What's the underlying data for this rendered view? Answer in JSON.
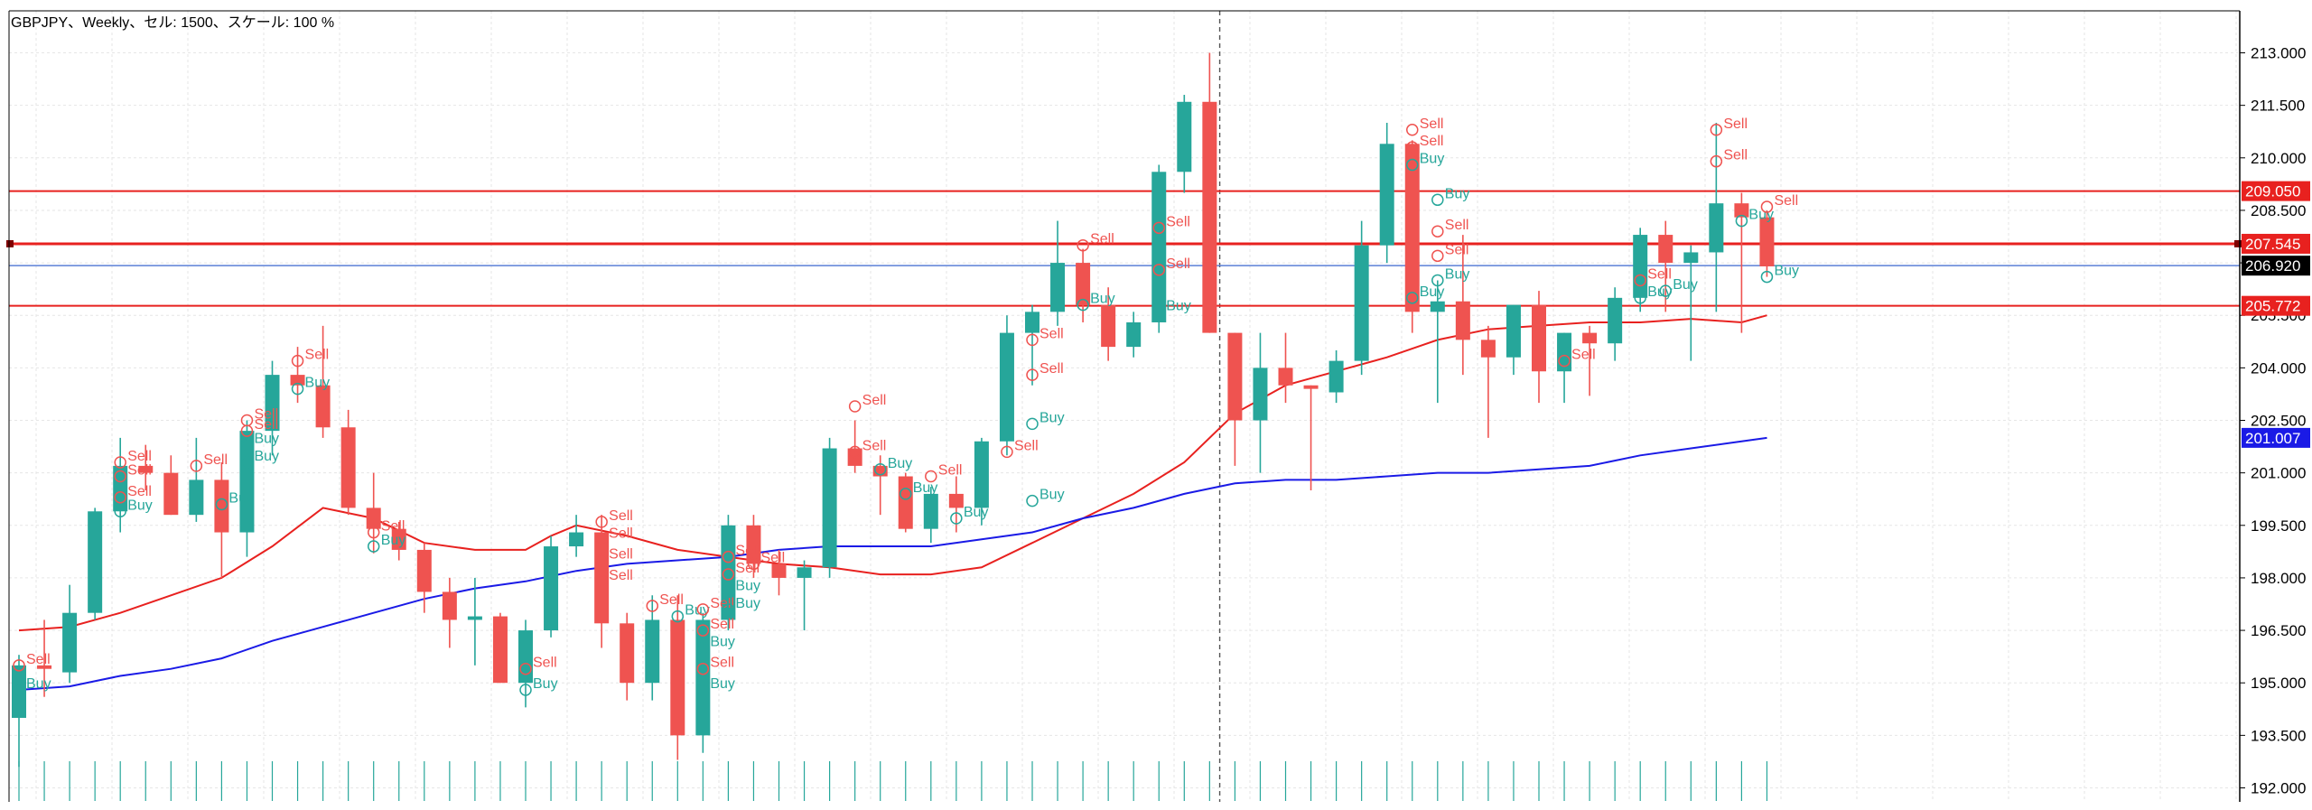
{
  "header": {
    "title": "GBPJPY、Weekly、セル: 1500、スケール: 100 %"
  },
  "colors": {
    "bull": "#26a69a",
    "bear": "#ef5350",
    "ma_fast": "#e8211f",
    "ma_slow": "#1a1ae6",
    "hline": "#e8211f",
    "bid_line": "#5b7fd6",
    "grid": "#e6e6e6",
    "axis": "#000000",
    "sell_text": "#ef5350",
    "buy_text": "#26a69a"
  },
  "chart_data": {
    "type": "candlestick",
    "symbol": "GBPJPY",
    "timeframe": "Weekly",
    "ylim": [
      191.6,
      214.2
    ],
    "y_ticks": [
      "192.000",
      "193.500",
      "195.000",
      "196.500",
      "198.000",
      "199.500",
      "201.000",
      "202.500",
      "204.000",
      "205.500",
      "207.000",
      "208.500",
      "210.000",
      "211.500",
      "213.000"
    ],
    "grid": true,
    "candles": [
      {
        "o": 194.0,
        "h": 195.8,
        "l": 192.6,
        "c": 195.5
      },
      {
        "o": 195.5,
        "h": 196.8,
        "l": 194.6,
        "c": 195.4
      },
      {
        "o": 195.3,
        "h": 197.8,
        "l": 195.0,
        "c": 197.0
      },
      {
        "o": 197.0,
        "h": 200.0,
        "l": 196.8,
        "c": 199.9
      },
      {
        "o": 199.9,
        "h": 202.0,
        "l": 199.3,
        "c": 201.2
      },
      {
        "o": 201.2,
        "h": 201.8,
        "l": 200.5,
        "c": 201.0
      },
      {
        "o": 201.0,
        "h": 201.5,
        "l": 199.8,
        "c": 199.8
      },
      {
        "o": 199.8,
        "h": 202.0,
        "l": 199.6,
        "c": 200.8
      },
      {
        "o": 200.8,
        "h": 201.3,
        "l": 198.0,
        "c": 199.3
      },
      {
        "o": 199.3,
        "h": 202.5,
        "l": 198.6,
        "c": 202.2
      },
      {
        "o": 202.2,
        "h": 204.2,
        "l": 201.5,
        "c": 203.8
      },
      {
        "o": 203.8,
        "h": 204.6,
        "l": 203.0,
        "c": 203.5
      },
      {
        "o": 203.5,
        "h": 205.2,
        "l": 202.0,
        "c": 202.3
      },
      {
        "o": 202.3,
        "h": 202.8,
        "l": 199.8,
        "c": 200.0
      },
      {
        "o": 200.0,
        "h": 201.0,
        "l": 198.7,
        "c": 199.4
      },
      {
        "o": 199.4,
        "h": 199.6,
        "l": 198.5,
        "c": 198.8
      },
      {
        "o": 198.8,
        "h": 199.0,
        "l": 197.0,
        "c": 197.6
      },
      {
        "o": 197.6,
        "h": 198.0,
        "l": 196.0,
        "c": 196.8
      },
      {
        "o": 196.8,
        "h": 198.0,
        "l": 195.5,
        "c": 196.9
      },
      {
        "o": 196.9,
        "h": 197.0,
        "l": 195.0,
        "c": 195.0
      },
      {
        "o": 195.0,
        "h": 196.8,
        "l": 194.3,
        "c": 196.5
      },
      {
        "o": 196.5,
        "h": 199.2,
        "l": 196.3,
        "c": 198.9
      },
      {
        "o": 198.9,
        "h": 199.8,
        "l": 198.6,
        "c": 199.3
      },
      {
        "o": 199.3,
        "h": 199.8,
        "l": 196.0,
        "c": 196.7
      },
      {
        "o": 196.7,
        "h": 197.0,
        "l": 194.5,
        "c": 195.0
      },
      {
        "o": 195.0,
        "h": 197.5,
        "l": 194.5,
        "c": 196.8
      },
      {
        "o": 196.8,
        "h": 197.5,
        "l": 192.8,
        "c": 193.5
      },
      {
        "o": 193.5,
        "h": 197.0,
        "l": 193.0,
        "c": 196.8
      },
      {
        "o": 196.8,
        "h": 199.8,
        "l": 196.5,
        "c": 199.5
      },
      {
        "o": 199.5,
        "h": 199.8,
        "l": 198.0,
        "c": 198.4
      },
      {
        "o": 198.4,
        "h": 198.8,
        "l": 197.5,
        "c": 198.0
      },
      {
        "o": 198.0,
        "h": 198.5,
        "l": 196.5,
        "c": 198.3
      },
      {
        "o": 198.3,
        "h": 202.0,
        "l": 198.0,
        "c": 201.7
      },
      {
        "o": 201.7,
        "h": 202.5,
        "l": 201.0,
        "c": 201.2
      },
      {
        "o": 201.2,
        "h": 201.5,
        "l": 199.8,
        "c": 200.9
      },
      {
        "o": 200.9,
        "h": 201.0,
        "l": 199.3,
        "c": 199.4
      },
      {
        "o": 199.4,
        "h": 200.6,
        "l": 199.0,
        "c": 200.4
      },
      {
        "o": 200.4,
        "h": 200.9,
        "l": 199.3,
        "c": 200.0
      },
      {
        "o": 200.0,
        "h": 202.0,
        "l": 199.5,
        "c": 201.9
      },
      {
        "o": 201.9,
        "h": 205.5,
        "l": 201.5,
        "c": 205.0
      },
      {
        "o": 205.0,
        "h": 205.8,
        "l": 203.5,
        "c": 205.6
      },
      {
        "o": 205.6,
        "h": 208.2,
        "l": 205.2,
        "c": 207.0
      },
      {
        "o": 207.0,
        "h": 207.4,
        "l": 205.3,
        "c": 205.8
      },
      {
        "o": 205.8,
        "h": 206.3,
        "l": 204.2,
        "c": 204.6
      },
      {
        "o": 204.6,
        "h": 205.6,
        "l": 204.3,
        "c": 205.3
      },
      {
        "o": 205.3,
        "h": 209.8,
        "l": 205.0,
        "c": 209.6
      },
      {
        "o": 209.6,
        "h": 211.8,
        "l": 209.0,
        "c": 211.6
      },
      {
        "o": 211.6,
        "h": 213.0,
        "l": 205.0,
        "c": 205.0
      },
      {
        "o": 205.0,
        "h": 205.0,
        "l": 201.2,
        "c": 202.5
      },
      {
        "o": 202.5,
        "h": 205.0,
        "l": 201.0,
        "c": 204.0
      },
      {
        "o": 204.0,
        "h": 205.0,
        "l": 203.0,
        "c": 203.5
      },
      {
        "o": 203.5,
        "h": 203.5,
        "l": 200.5,
        "c": 203.4
      },
      {
        "o": 203.3,
        "h": 204.5,
        "l": 203.0,
        "c": 204.2
      },
      {
        "o": 204.2,
        "h": 208.2,
        "l": 203.8,
        "c": 207.5
      },
      {
        "o": 207.5,
        "h": 211.0,
        "l": 207.0,
        "c": 210.4
      },
      {
        "o": 210.4,
        "h": 210.5,
        "l": 205.0,
        "c": 205.6
      },
      {
        "o": 205.6,
        "h": 206.5,
        "l": 203.0,
        "c": 205.9
      },
      {
        "o": 205.9,
        "h": 207.8,
        "l": 203.8,
        "c": 204.8
      },
      {
        "o": 204.8,
        "h": 205.2,
        "l": 202.0,
        "c": 204.3
      },
      {
        "o": 204.3,
        "h": 205.8,
        "l": 203.8,
        "c": 205.8
      },
      {
        "o": 205.8,
        "h": 206.2,
        "l": 203.0,
        "c": 203.9
      },
      {
        "o": 203.9,
        "h": 205.0,
        "l": 203.0,
        "c": 205.0
      },
      {
        "o": 205.0,
        "h": 205.2,
        "l": 203.2,
        "c": 204.7
      },
      {
        "o": 204.7,
        "h": 206.3,
        "l": 204.2,
        "c": 206.0
      },
      {
        "o": 206.0,
        "h": 208.0,
        "l": 205.6,
        "c": 207.8
      },
      {
        "o": 207.8,
        "h": 208.2,
        "l": 205.6,
        "c": 207.0
      },
      {
        "o": 207.0,
        "h": 207.5,
        "l": 204.2,
        "c": 207.3
      },
      {
        "o": 207.3,
        "h": 211.0,
        "l": 205.6,
        "c": 208.7
      },
      {
        "o": 208.7,
        "h": 209.0,
        "l": 205.0,
        "c": 208.3
      },
      {
        "o": 208.3,
        "h": 208.5,
        "l": 206.6,
        "c": 206.9
      }
    ],
    "ma_fast": [
      [
        0,
        196.5
      ],
      [
        2,
        196.6
      ],
      [
        4,
        197.0
      ],
      [
        6,
        197.5
      ],
      [
        8,
        198.0
      ],
      [
        10,
        198.9
      ],
      [
        12,
        200.0
      ],
      [
        14,
        199.7
      ],
      [
        16,
        199.0
      ],
      [
        18,
        198.8
      ],
      [
        20,
        198.8
      ],
      [
        21,
        199.2
      ],
      [
        22,
        199.5
      ],
      [
        24,
        199.2
      ],
      [
        26,
        198.8
      ],
      [
        28,
        198.6
      ],
      [
        30,
        198.4
      ],
      [
        32,
        198.3
      ],
      [
        34,
        198.1
      ],
      [
        36,
        198.1
      ],
      [
        38,
        198.3
      ],
      [
        40,
        199.0
      ],
      [
        42,
        199.7
      ],
      [
        44,
        200.4
      ],
      [
        46,
        201.3
      ],
      [
        48,
        202.7
      ],
      [
        50,
        203.5
      ],
      [
        52,
        203.9
      ],
      [
        54,
        204.3
      ],
      [
        56,
        204.8
      ],
      [
        58,
        205.1
      ],
      [
        60,
        205.2
      ],
      [
        62,
        205.3
      ],
      [
        64,
        205.3
      ],
      [
        66,
        205.4
      ],
      [
        68,
        205.3
      ],
      [
        69,
        205.5
      ]
    ],
    "ma_slow": [
      [
        0,
        194.8
      ],
      [
        2,
        194.9
      ],
      [
        4,
        195.2
      ],
      [
        6,
        195.4
      ],
      [
        8,
        195.7
      ],
      [
        10,
        196.2
      ],
      [
        12,
        196.6
      ],
      [
        14,
        197.0
      ],
      [
        16,
        197.4
      ],
      [
        18,
        197.7
      ],
      [
        20,
        197.9
      ],
      [
        22,
        198.2
      ],
      [
        24,
        198.4
      ],
      [
        26,
        198.5
      ],
      [
        28,
        198.6
      ],
      [
        30,
        198.8
      ],
      [
        32,
        198.9
      ],
      [
        34,
        198.9
      ],
      [
        36,
        198.9
      ],
      [
        38,
        199.1
      ],
      [
        40,
        199.3
      ],
      [
        42,
        199.7
      ],
      [
        44,
        200.0
      ],
      [
        46,
        200.4
      ],
      [
        48,
        200.7
      ],
      [
        50,
        200.8
      ],
      [
        52,
        200.8
      ],
      [
        54,
        200.9
      ],
      [
        56,
        201.0
      ],
      [
        58,
        201.0
      ],
      [
        60,
        201.1
      ],
      [
        62,
        201.2
      ],
      [
        64,
        201.5
      ],
      [
        66,
        201.7
      ],
      [
        68,
        201.9
      ],
      [
        69,
        202.0
      ]
    ],
    "hlines": [
      {
        "value": 209.05,
        "label": "209.050",
        "width": 2
      },
      {
        "value": 207.545,
        "label": "207.545",
        "width": 3
      },
      {
        "value": 205.772,
        "label": "205.772",
        "width": 2
      }
    ],
    "bid_line": {
      "value": 206.92,
      "label": "206.920"
    },
    "ma_slow_label": "201.007",
    "crosshair_index": 47.4,
    "signals": [
      {
        "i": 0,
        "t": "Sell",
        "p": 195.5,
        "k": "sell"
      },
      {
        "i": 0,
        "t": "Buy",
        "p": 194.8,
        "k": "buy"
      },
      {
        "i": 4,
        "t": "Sell",
        "p": 201.3,
        "k": "sell"
      },
      {
        "i": 4,
        "t": "Sell",
        "p": 200.9,
        "k": "sell"
      },
      {
        "i": 4,
        "t": "Sell",
        "p": 200.3,
        "k": "sell"
      },
      {
        "i": 4,
        "t": "Buy",
        "p": 199.9,
        "k": "buy"
      },
      {
        "i": 7,
        "t": "Sell",
        "p": 201.2,
        "k": "sell"
      },
      {
        "i": 8,
        "t": "Buy",
        "p": 200.1,
        "k": "buy"
      },
      {
        "i": 9,
        "t": "Sell",
        "p": 202.5,
        "k": "sell"
      },
      {
        "i": 9,
        "t": "Sell",
        "p": 202.2,
        "k": "sell"
      },
      {
        "i": 9,
        "t": "Buy",
        "p": 201.8,
        "k": "buy"
      },
      {
        "i": 9,
        "t": "Buy",
        "p": 201.3,
        "k": "buy"
      },
      {
        "i": 11,
        "t": "Sell",
        "p": 204.2,
        "k": "sell"
      },
      {
        "i": 11,
        "t": "Buy",
        "p": 203.4,
        "k": "buy"
      },
      {
        "i": 14,
        "t": "Sell",
        "p": 199.3,
        "k": "sell"
      },
      {
        "i": 14,
        "t": "Buy",
        "p": 198.9,
        "k": "buy"
      },
      {
        "i": 20,
        "t": "Sell",
        "p": 195.4,
        "k": "sell"
      },
      {
        "i": 20,
        "t": "Buy",
        "p": 194.8,
        "k": "buy"
      },
      {
        "i": 23,
        "t": "Sell",
        "p": 199.6,
        "k": "sell"
      },
      {
        "i": 23,
        "t": "Sell",
        "p": 199.1,
        "k": "sell"
      },
      {
        "i": 23,
        "t": "Sell",
        "p": 198.5,
        "k": "sell"
      },
      {
        "i": 23,
        "t": "Sell",
        "p": 197.9,
        "k": "sell"
      },
      {
        "i": 25,
        "t": "Sell",
        "p": 197.2,
        "k": "sell"
      },
      {
        "i": 26,
        "t": "Buy",
        "p": 196.9,
        "k": "buy"
      },
      {
        "i": 27,
        "t": "Sell",
        "p": 197.1,
        "k": "sell"
      },
      {
        "i": 27,
        "t": "Sell",
        "p": 196.5,
        "k": "sell"
      },
      {
        "i": 27,
        "t": "Buy",
        "p": 196.0,
        "k": "buy"
      },
      {
        "i": 27,
        "t": "Sell",
        "p": 195.4,
        "k": "sell"
      },
      {
        "i": 27,
        "t": "Buy",
        "p": 194.8,
        "k": "buy"
      },
      {
        "i": 28,
        "t": "Sell",
        "p": 198.6,
        "k": "sell"
      },
      {
        "i": 28,
        "t": "Sell",
        "p": 198.1,
        "k": "sell"
      },
      {
        "i": 28,
        "t": "Buy",
        "p": 197.6,
        "k": "buy"
      },
      {
        "i": 28,
        "t": "Buy",
        "p": 197.1,
        "k": "buy"
      },
      {
        "i": 29,
        "t": "Sell",
        "p": 198.4,
        "k": "sell"
      },
      {
        "i": 33,
        "t": "Sell",
        "p": 202.9,
        "k": "sell"
      },
      {
        "i": 33,
        "t": "Sell",
        "p": 201.6,
        "k": "sell"
      },
      {
        "i": 34,
        "t": "Buy",
        "p": 201.1,
        "k": "buy"
      },
      {
        "i": 35,
        "t": "Buy",
        "p": 200.4,
        "k": "buy"
      },
      {
        "i": 36,
        "t": "Sell",
        "p": 200.9,
        "k": "sell"
      },
      {
        "i": 37,
        "t": "Buy",
        "p": 199.7,
        "k": "buy"
      },
      {
        "i": 39,
        "t": "Sell",
        "p": 201.6,
        "k": "sell"
      },
      {
        "i": 40,
        "t": "Buy",
        "p": 200.2,
        "k": "buy"
      },
      {
        "i": 40,
        "t": "Sell",
        "p": 204.8,
        "k": "sell"
      },
      {
        "i": 40,
        "t": "Sell",
        "p": 203.8,
        "k": "sell"
      },
      {
        "i": 40,
        "t": "Buy",
        "p": 202.4,
        "k": "buy"
      },
      {
        "i": 42,
        "t": "Sell",
        "p": 207.5,
        "k": "sell"
      },
      {
        "i": 42,
        "t": "Buy",
        "p": 205.8,
        "k": "buy"
      },
      {
        "i": 45,
        "t": "Sell",
        "p": 208.0,
        "k": "sell"
      },
      {
        "i": 45,
        "t": "Sell",
        "p": 206.8,
        "k": "sell"
      },
      {
        "i": 45,
        "t": "Buy",
        "p": 205.6,
        "k": "buy"
      },
      {
        "i": 55,
        "t": "Sell",
        "p": 210.8,
        "k": "sell"
      },
      {
        "i": 55,
        "t": "Sell",
        "p": 210.3,
        "k": "sell"
      },
      {
        "i": 55,
        "t": "Buy",
        "p": 209.8,
        "k": "buy"
      },
      {
        "i": 56,
        "t": "Buy",
        "p": 208.8,
        "k": "buy"
      },
      {
        "i": 56,
        "t": "Sell",
        "p": 207.9,
        "k": "sell"
      },
      {
        "i": 56,
        "t": "Sell",
        "p": 207.2,
        "k": "sell"
      },
      {
        "i": 56,
        "t": "Buy",
        "p": 206.5,
        "k": "buy"
      },
      {
        "i": 55,
        "t": "Buy",
        "p": 206.0,
        "k": "buy"
      },
      {
        "i": 61,
        "t": "Sell",
        "p": 204.2,
        "k": "sell"
      },
      {
        "i": 64,
        "t": "Sell",
        "p": 206.5,
        "k": "sell"
      },
      {
        "i": 64,
        "t": "Buy",
        "p": 206.0,
        "k": "buy"
      },
      {
        "i": 65,
        "t": "Buy",
        "p": 206.2,
        "k": "buy"
      },
      {
        "i": 67,
        "t": "Sell",
        "p": 210.8,
        "k": "sell"
      },
      {
        "i": 67,
        "t": "Sell",
        "p": 209.9,
        "k": "sell"
      },
      {
        "i": 68,
        "t": "Buy",
        "p": 208.2,
        "k": "buy"
      },
      {
        "i": 69,
        "t": "Sell",
        "p": 208.6,
        "k": "sell"
      },
      {
        "i": 69,
        "t": "Buy",
        "p": 206.6,
        "k": "buy"
      }
    ]
  }
}
